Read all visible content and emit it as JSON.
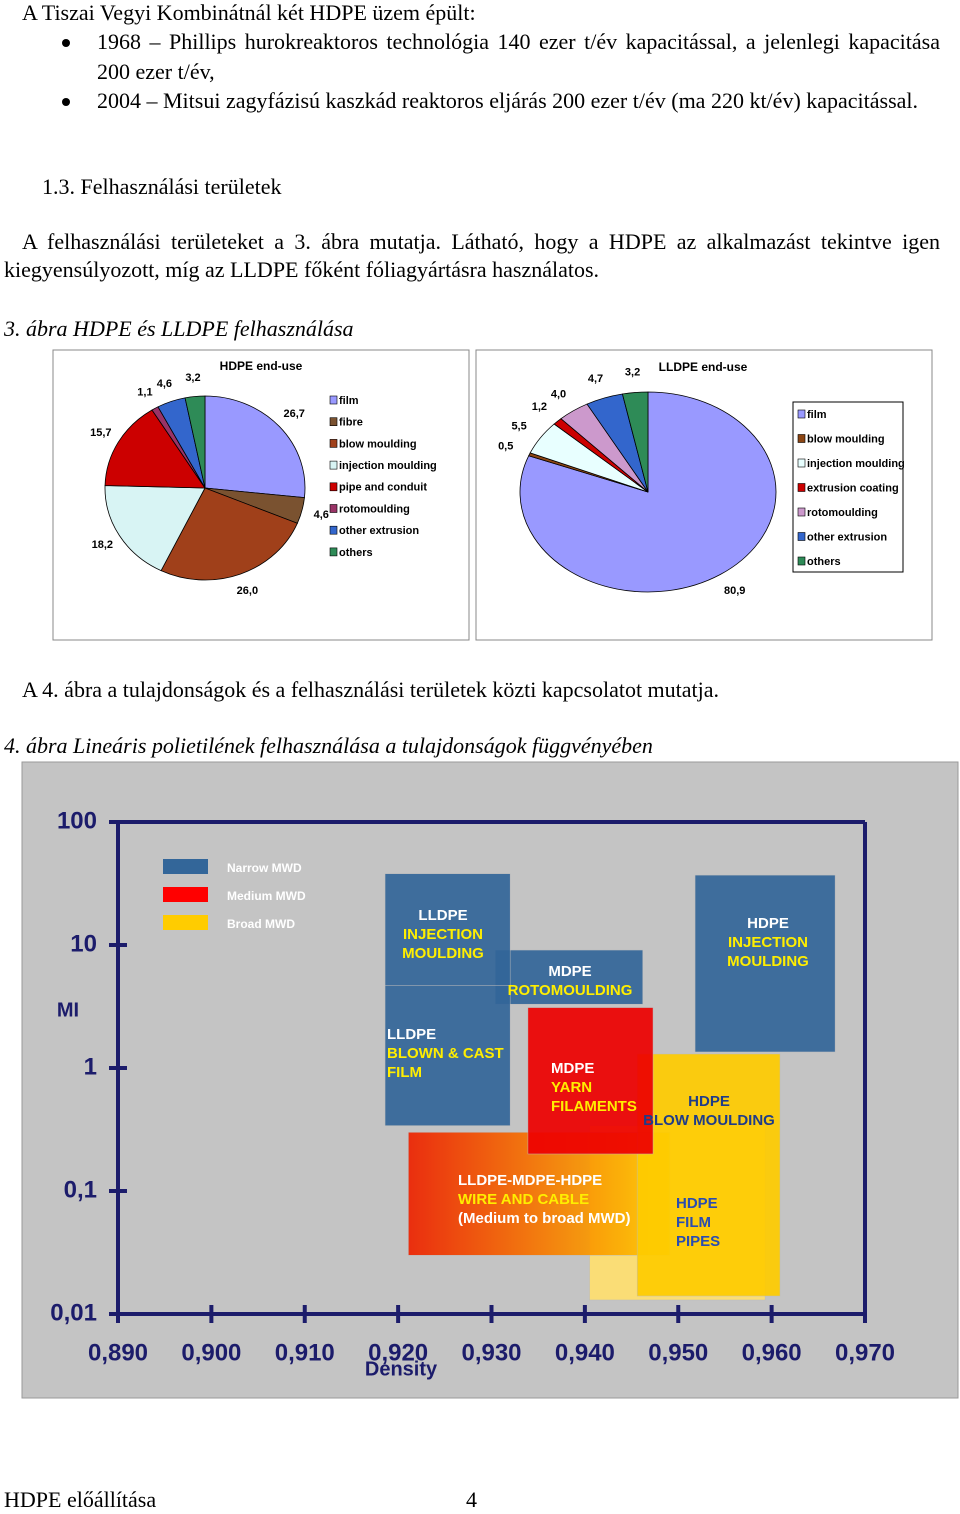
{
  "intro": "A Tiszai Vegyi Kombinátnál két HDPE üzem épült:",
  "bullets": [
    "1968 – Phillips hurokreaktoros technológia 140 ezer t/év kapacitással, a jelenlegi kapacitása 200 ezer t/év,",
    "2004 – Mitsui zagyfázisú kaszkád reaktoros eljárás 200 ezer t/év (ma 220 kt/év) kapacitással."
  ],
  "section": "1.3. Felhasználási területek",
  "paragraph1": "A felhasználási területeket a 3. ábra mutatja. Látható, hogy a HDPE az alkalmazást tekintve igen kiegyensúlyozott, míg az LLDPE főként fóliagyártásra használatos.",
  "caption3": "3. ábra HDPE és LLDPE felhasználása",
  "paragraph2": "A 4. ábra a tulajdonságok és a felhasználási területek közti kapcsolatot mutatja.",
  "caption4": "4. ábra Lineáris polietilének felhasználása a tulajdonságok függvényében",
  "footer": {
    "left": "HDPE előállítása",
    "page": "4"
  },
  "chart_data": [
    {
      "type": "pie",
      "title": "HDPE end-use",
      "categories": [
        "film",
        "fibre",
        "blow moulding",
        "injection moulding",
        "pipe and conduit",
        "rotomoulding",
        "other extrusion",
        "others"
      ],
      "values": [
        26.7,
        4.6,
        26.0,
        18.2,
        15.7,
        1.1,
        4.6,
        3.2
      ],
      "value_labels": [
        "26,7",
        "4,6",
        "26,0",
        "18,2",
        "15,7",
        "1,1",
        "4,6",
        "3,2"
      ],
      "colors": [
        "#9999ff",
        "#7a5230",
        "#a0401a",
        "#d8f4f4",
        "#cc0000",
        "#993366",
        "#3366cc",
        "#2e8b57"
      ]
    },
    {
      "type": "pie",
      "title": "LLDPE end-use",
      "categories": [
        "film",
        "blow moulding",
        "injection moulding",
        "extrusion coating",
        "rotomoulding",
        "other extrusion",
        "others"
      ],
      "values": [
        80.9,
        0.5,
        5.5,
        1.2,
        4.0,
        4.7,
        3.2
      ],
      "value_labels": [
        "80,9",
        "0,5",
        "5,5",
        "1,2",
        "4,0",
        "4,7",
        "3,2"
      ],
      "colors": [
        "#9999ff",
        "#8b4513",
        "#e8ffff",
        "#cc0000",
        "#cc99cc",
        "#3366cc",
        "#2e8b57"
      ]
    },
    {
      "type": "region",
      "ylabel": "MI",
      "xlabel": "Density",
      "log_y": true,
      "xlim": [
        0.89,
        0.97
      ],
      "ylim": [
        0.01,
        100
      ],
      "xticks": [
        {
          "value": 0.89,
          "label": "0,890"
        },
        {
          "value": 0.9,
          "label": "0,900"
        },
        {
          "value": 0.91,
          "label": "0,910"
        },
        {
          "value": 0.92,
          "label": "0,920"
        },
        {
          "value": 0.93,
          "label": "0,930"
        },
        {
          "value": 0.94,
          "label": "0,940"
        },
        {
          "value": 0.95,
          "label": "0,950"
        },
        {
          "value": 0.96,
          "label": "0,960"
        },
        {
          "value": 0.97,
          "label": "0,970"
        }
      ],
      "yticks": [
        100,
        10,
        1,
        {
          "value": 0.1,
          "label": "0,1"
        },
        {
          "value": 0.01,
          "label": "0,01"
        }
      ],
      "legend": [
        {
          "name": "Narrow MWD",
          "color": "#336699"
        },
        {
          "name": "Medium MWD",
          "color": "#ff0000"
        },
        {
          "name": "Broad MWD",
          "color": "#ffcc00"
        }
      ],
      "regions": [
        {
          "label": [
            "HDPE",
            "FILM",
            "PIPES"
          ],
          "text_colors": [
            "#2a4db0",
            "#2a4db0",
            "#2a4db0"
          ],
          "color": "#ffe070",
          "x": [
            0.9405,
            0.9593
          ],
          "y": [
            0.34,
            0.013
          ]
        },
        {
          "label": [
            "LLDPE-MDPE-HDPE",
            "WIRE AND CABLE",
            "(Medium to broad MWD)"
          ],
          "text_colors": [
            "#ffffff",
            "#ffee00",
            "#ffffff"
          ],
          "color": [
            "#ee2200",
            "#ffcc00"
          ],
          "x": [
            0.9211,
            0.9491
          ],
          "y": [
            0.3,
            0.03
          ]
        },
        {
          "label": [
            "HDPE",
            "BLOW MOULDING"
          ],
          "text_colors": [
            "#1f3c88",
            "#1f3c88"
          ],
          "color": "#ffcc00",
          "x": [
            0.9456,
            0.9609
          ],
          "y": [
            1.3,
            0.014
          ]
        },
        {
          "label": [
            "MDPE",
            "YARN",
            "FILAMENTS"
          ],
          "text_colors": [
            "#ffffff",
            "#ffee00",
            "#ffee00"
          ],
          "color": "#ee0000",
          "x": [
            0.9339,
            0.9473
          ],
          "y": [
            3.1,
            0.2
          ]
        },
        {
          "label": [
            "MDPE",
            "ROTOMOULDING"
          ],
          "text_colors": [
            "#ffffff",
            "#ffee00"
          ],
          "color": "#336699",
          "x": [
            0.9304,
            0.9462
          ],
          "y": [
            9.1,
            3.3
          ]
        },
        {
          "label": [
            "LLDPE",
            "INJECTION",
            "MOULDING"
          ],
          "text_colors": [
            "#ffffff",
            "#ffee00",
            "#ffee00"
          ],
          "color": "#336699",
          "x": [
            0.9186,
            0.932
          ],
          "y": [
            38,
            4.7
          ]
        },
        {
          "label": [
            "LLDPE",
            "BLOWN & CAST",
            "FILM"
          ],
          "text_colors": [
            "#ffffff",
            "#ffee00",
            "#ffee00"
          ],
          "color": "#336699",
          "x": [
            0.9186,
            0.932
          ],
          "y": [
            4.7,
            0.34
          ]
        },
        {
          "label": [
            "HDPE",
            "INJECTION",
            "MOULDING"
          ],
          "text_colors": [
            "#ffffff",
            "#ffee00",
            "#ffee00"
          ],
          "color": "#336699",
          "x": [
            0.9518,
            0.9668
          ],
          "y": [
            37,
            1.35
          ]
        }
      ]
    }
  ]
}
